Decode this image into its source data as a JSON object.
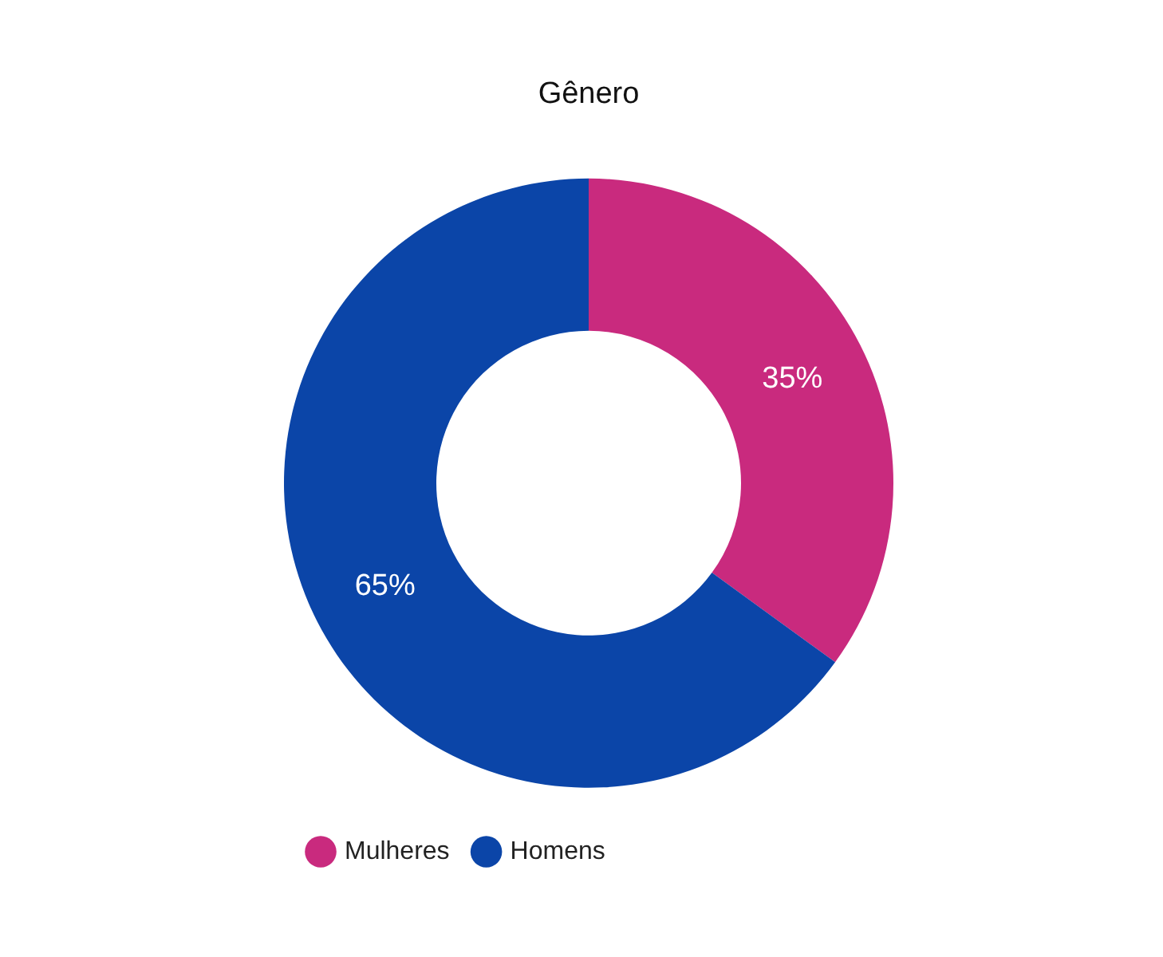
{
  "chart_data": {
    "type": "donut",
    "title": "Gênero",
    "categories": [
      "Mulheres",
      "Homens"
    ],
    "values": [
      35,
      65
    ],
    "colors": [
      "#c92a7e",
      "#0b45a8"
    ],
    "value_labels": [
      "35%",
      "65%"
    ],
    "legend": "bottom left"
  }
}
